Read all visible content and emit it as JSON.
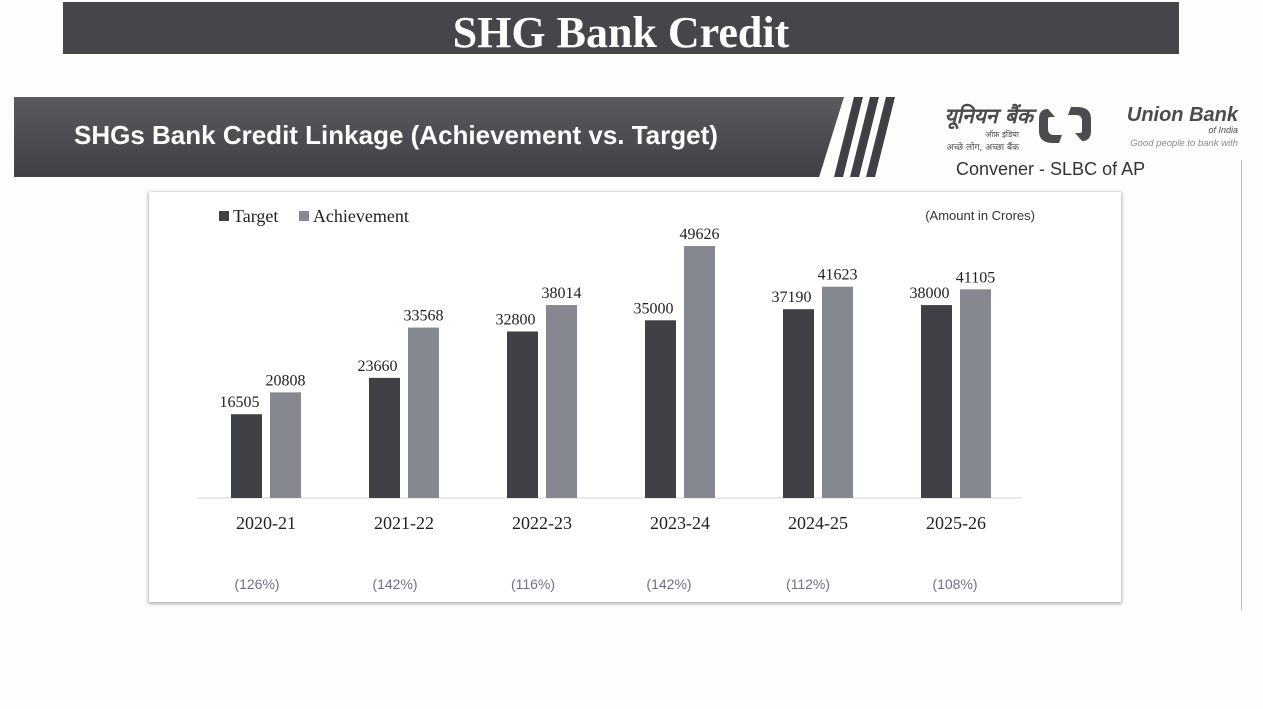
{
  "page_title": "SHG Bank Credit",
  "banner_title": "SHGs Bank Credit Linkage (Achievement vs. Target)",
  "logo": {
    "hindi_name": "यूनियन बैंक",
    "hindi_sub": "ऑफ़ इंडिया",
    "hindi_tagline": "अच्छे लोग, अच्छा बैंक",
    "english_name": "Union Bank",
    "english_sub": "of India",
    "tagline": "Good people to bank with"
  },
  "convener": "Convener - SLBC of AP",
  "colors": {
    "header_bg": "#45464a",
    "target": "#404146",
    "achievement": "#868891",
    "percentage_text": "#6e6f8b"
  },
  "chart_data": {
    "type": "bar",
    "unit_note": "(Amount in Crores)",
    "categories": [
      "2020-21",
      "2021-22",
      "2022-23",
      "2023-24",
      "2024-25",
      "2025-26"
    ],
    "series": [
      {
        "name": "Target",
        "values": [
          16505,
          23660,
          32800,
          35000,
          37190,
          38000
        ]
      },
      {
        "name": "Achievement",
        "values": [
          20808,
          33568,
          38014,
          49626,
          41623,
          41105
        ]
      }
    ],
    "percentages": [
      "(126%)",
      "(142%)",
      "(116%)",
      "(142%)",
      "(112%)",
      "(108%)"
    ],
    "ylim": [
      0,
      52000
    ],
    "legend_position": "top-left",
    "grid": false
  }
}
